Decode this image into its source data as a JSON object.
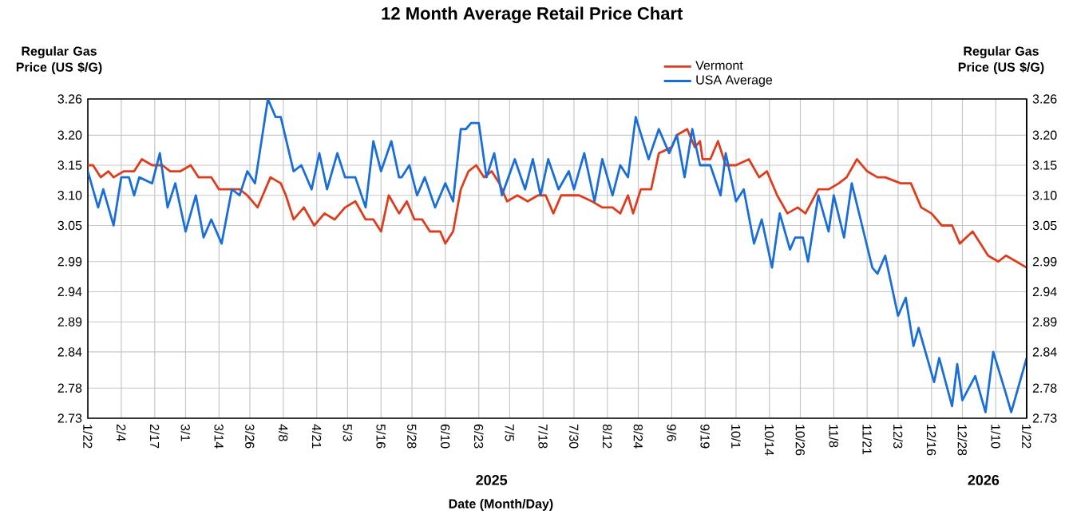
{
  "chart_data": {
    "type": "line",
    "title": "12 Month Average Retail Price Chart",
    "xlabel": "Date (Month/Day)",
    "ylabel": "Regular Gas Price (US $/G)",
    "y2label": "Regular Gas Price (US $/G)",
    "annotations": [
      "2025",
      "2026"
    ],
    "xlim": [
      "2025-01-22",
      "2026-01-22"
    ],
    "xticks": [
      {
        "value": "2025-01-22",
        "label": "1/22"
      },
      {
        "value": "2025-02-04",
        "label": "2/4"
      },
      {
        "value": "2025-02-17",
        "label": "2/17"
      },
      {
        "value": "2025-03-01",
        "label": "3/1"
      },
      {
        "value": "2025-03-14",
        "label": "3/14"
      },
      {
        "value": "2025-03-26",
        "label": "3/26"
      },
      {
        "value": "2025-04-08",
        "label": "4/8"
      },
      {
        "value": "2025-04-21",
        "label": "4/21"
      },
      {
        "value": "2025-05-03",
        "label": "5/3"
      },
      {
        "value": "2025-05-16",
        "label": "5/16"
      },
      {
        "value": "2025-05-28",
        "label": "5/28"
      },
      {
        "value": "2025-06-10",
        "label": "6/10"
      },
      {
        "value": "2025-06-23",
        "label": "6/23"
      },
      {
        "value": "2025-07-05",
        "label": "7/5"
      },
      {
        "value": "2025-07-18",
        "label": "7/18"
      },
      {
        "value": "2025-07-30",
        "label": "7/30"
      },
      {
        "value": "2025-08-12",
        "label": "8/12"
      },
      {
        "value": "2025-08-24",
        "label": "8/24"
      },
      {
        "value": "2025-09-06",
        "label": "9/6"
      },
      {
        "value": "2025-09-19",
        "label": "9/19"
      },
      {
        "value": "2025-10-01",
        "label": "10/1"
      },
      {
        "value": "2025-10-14",
        "label": "10/14"
      },
      {
        "value": "2025-10-26",
        "label": "10/26"
      },
      {
        "value": "2025-11-08",
        "label": "11/8"
      },
      {
        "value": "2025-11-21",
        "label": "11/21"
      },
      {
        "value": "2025-12-03",
        "label": "12/3"
      },
      {
        "value": "2025-12-16",
        "label": "12/16"
      },
      {
        "value": "2025-12-28",
        "label": "12/28"
      },
      {
        "value": "2026-01-10",
        "label": "1/10"
      },
      {
        "value": "2026-01-22",
        "label": "1/22"
      }
    ],
    "ylim": [
      2.73,
      3.26
    ],
    "yticks": [
      {
        "value": 2.73,
        "label": "2.73"
      },
      {
        "value": 2.78,
        "label": "2.78"
      },
      {
        "value": 2.84,
        "label": "2.84"
      },
      {
        "value": 2.89,
        "label": "2.89"
      },
      {
        "value": 2.94,
        "label": "2.94"
      },
      {
        "value": 2.99,
        "label": "2.99"
      },
      {
        "value": 3.05,
        "label": "3.05"
      },
      {
        "value": 3.1,
        "label": "3.10"
      },
      {
        "value": 3.15,
        "label": "3.15"
      },
      {
        "value": 3.2,
        "label": "3.20"
      },
      {
        "value": 3.26,
        "label": "3.26"
      }
    ],
    "y2lim": [
      2.73,
      3.26
    ],
    "y2ticks": [
      {
        "value": 2.73,
        "label": "2.73"
      },
      {
        "value": 2.78,
        "label": "2.78"
      },
      {
        "value": 2.84,
        "label": "2.84"
      },
      {
        "value": 2.89,
        "label": "2.89"
      },
      {
        "value": 2.94,
        "label": "2.94"
      },
      {
        "value": 2.99,
        "label": "2.99"
      },
      {
        "value": 3.05,
        "label": "3.05"
      },
      {
        "value": 3.1,
        "label": "3.10"
      },
      {
        "value": 3.15,
        "label": "3.15"
      },
      {
        "value": 3.2,
        "label": "3.20"
      },
      {
        "value": 3.26,
        "label": "3.26"
      }
    ],
    "grid": true,
    "legend": "top",
    "series": [
      {
        "name": "Vermont",
        "color": "#dd3d1c",
        "x": [
          "2025-01-22",
          "2025-01-24",
          "2025-01-27",
          "2025-01-30",
          "2025-02-01",
          "2025-02-05",
          "2025-02-09",
          "2025-02-12",
          "2025-02-16",
          "2025-02-20",
          "2025-02-23",
          "2025-02-27",
          "2025-03-03",
          "2025-03-06",
          "2025-03-11",
          "2025-03-14",
          "2025-03-18",
          "2025-03-22",
          "2025-03-25",
          "2025-03-29",
          "2025-03-31",
          "2025-04-03",
          "2025-04-07",
          "2025-04-09",
          "2025-04-12",
          "2025-04-16",
          "2025-04-20",
          "2025-04-24",
          "2025-04-28",
          "2025-05-02",
          "2025-05-06",
          "2025-05-10",
          "2025-05-13",
          "2025-05-16",
          "2025-05-19",
          "2025-05-23",
          "2025-05-26",
          "2025-05-29",
          "2025-06-01",
          "2025-06-04",
          "2025-06-08",
          "2025-06-10",
          "2025-06-13",
          "2025-06-16",
          "2025-06-19",
          "2025-06-22",
          "2025-06-25",
          "2025-06-28",
          "2025-07-01",
          "2025-07-04",
          "2025-07-08",
          "2025-07-12",
          "2025-07-16",
          "2025-07-19",
          "2025-07-22",
          "2025-07-25",
          "2025-07-29",
          "2025-08-01",
          "2025-08-06",
          "2025-08-10",
          "2025-08-14",
          "2025-08-17",
          "2025-08-20",
          "2025-08-22",
          "2025-08-25",
          "2025-08-29",
          "2025-09-01",
          "2025-09-06",
          "2025-09-08",
          "2025-09-12",
          "2025-09-15",
          "2025-09-17",
          "2025-09-18",
          "2025-09-21",
          "2025-09-24",
          "2025-09-27",
          "2025-10-01",
          "2025-10-06",
          "2025-10-10",
          "2025-10-13",
          "2025-10-17",
          "2025-10-21",
          "2025-10-25",
          "2025-10-28",
          "2025-11-02",
          "2025-11-06",
          "2025-11-10",
          "2025-11-13",
          "2025-11-17",
          "2025-11-21",
          "2025-11-25",
          "2025-11-28",
          "2025-12-04",
          "2025-12-08",
          "2025-12-12",
          "2025-12-16",
          "2025-12-20",
          "2025-12-24",
          "2025-12-27",
          "2026-01-01",
          "2026-01-04",
          "2026-01-07",
          "2026-01-11",
          "2026-01-14",
          "2026-01-22"
        ],
        "values": [
          3.15,
          3.15,
          3.13,
          3.14,
          3.13,
          3.14,
          3.14,
          3.16,
          3.15,
          3.15,
          3.14,
          3.14,
          3.15,
          3.13,
          3.13,
          3.11,
          3.11,
          3.11,
          3.1,
          3.08,
          3.1,
          3.13,
          3.12,
          3.1,
          3.06,
          3.08,
          3.05,
          3.07,
          3.06,
          3.08,
          3.09,
          3.06,
          3.06,
          3.04,
          3.1,
          3.07,
          3.09,
          3.06,
          3.06,
          3.04,
          3.04,
          3.02,
          3.04,
          3.11,
          3.14,
          3.15,
          3.13,
          3.14,
          3.12,
          3.09,
          3.1,
          3.09,
          3.1,
          3.1,
          3.07,
          3.1,
          3.1,
          3.1,
          3.09,
          3.08,
          3.08,
          3.07,
          3.1,
          3.07,
          3.11,
          3.11,
          3.17,
          3.18,
          3.2,
          3.21,
          3.18,
          3.19,
          3.16,
          3.16,
          3.19,
          3.15,
          3.15,
          3.16,
          3.13,
          3.14,
          3.1,
          3.07,
          3.08,
          3.07,
          3.11,
          3.11,
          3.12,
          3.13,
          3.16,
          3.14,
          3.13,
          3.13,
          3.12,
          3.12,
          3.08,
          3.07,
          3.05,
          3.05,
          3.02,
          3.04,
          3.02,
          3.0,
          2.99,
          3.0,
          2.98
        ]
      },
      {
        "name": "USA Average",
        "color": "#1a6ed8",
        "x": [
          "2025-01-22",
          "2025-01-26",
          "2025-01-28",
          "2025-02-01",
          "2025-02-04",
          "2025-02-07",
          "2025-02-09",
          "2025-02-11",
          "2025-02-16",
          "2025-02-19",
          "2025-02-22",
          "2025-02-25",
          "2025-03-01",
          "2025-03-05",
          "2025-03-08",
          "2025-03-11",
          "2025-03-15",
          "2025-03-19",
          "2025-03-22",
          "2025-03-25",
          "2025-03-28",
          "2025-04-02",
          "2025-04-05",
          "2025-04-07",
          "2025-04-12",
          "2025-04-15",
          "2025-04-19",
          "2025-04-22",
          "2025-04-25",
          "2025-04-29",
          "2025-05-02",
          "2025-05-06",
          "2025-05-10",
          "2025-05-13",
          "2025-05-16",
          "2025-05-20",
          "2025-05-23",
          "2025-05-24",
          "2025-05-27",
          "2025-05-30",
          "2025-06-02",
          "2025-06-06",
          "2025-06-10",
          "2025-06-13",
          "2025-06-16",
          "2025-06-18",
          "2025-06-20",
          "2025-06-23",
          "2025-06-26",
          "2025-06-29",
          "2025-07-02",
          "2025-07-07",
          "2025-07-11",
          "2025-07-14",
          "2025-07-17",
          "2025-07-20",
          "2025-07-24",
          "2025-07-28",
          "2025-07-30",
          "2025-08-03",
          "2025-08-07",
          "2025-08-10",
          "2025-08-14",
          "2025-08-17",
          "2025-08-20",
          "2025-08-23",
          "2025-08-28",
          "2025-09-01",
          "2025-09-05",
          "2025-09-08",
          "2025-09-11",
          "2025-09-14",
          "2025-09-17",
          "2025-09-21",
          "2025-09-25",
          "2025-09-27",
          "2025-10-01",
          "2025-10-04",
          "2025-10-08",
          "2025-10-11",
          "2025-10-15",
          "2025-10-18",
          "2025-10-22",
          "2025-10-24",
          "2025-10-27",
          "2025-10-29",
          "2025-11-02",
          "2025-11-06",
          "2025-11-08",
          "2025-11-12",
          "2025-11-15",
          "2025-11-19",
          "2025-11-23",
          "2025-11-25",
          "2025-11-28",
          "2025-12-03",
          "2025-12-06",
          "2025-12-09",
          "2025-12-11",
          "2025-12-17",
          "2025-12-19",
          "2025-12-24",
          "2025-12-26",
          "2025-12-28",
          "2026-01-02",
          "2026-01-06",
          "2026-01-09",
          "2026-01-14",
          "2026-01-16",
          "2026-01-22"
        ],
        "values": [
          3.14,
          3.08,
          3.11,
          3.05,
          3.13,
          3.13,
          3.1,
          3.13,
          3.12,
          3.17,
          3.08,
          3.12,
          3.04,
          3.1,
          3.03,
          3.06,
          3.02,
          3.11,
          3.1,
          3.14,
          3.12,
          3.26,
          3.23,
          3.23,
          3.14,
          3.15,
          3.11,
          3.17,
          3.11,
          3.17,
          3.13,
          3.13,
          3.08,
          3.19,
          3.14,
          3.19,
          3.13,
          3.13,
          3.15,
          3.1,
          3.13,
          3.08,
          3.12,
          3.09,
          3.21,
          3.21,
          3.22,
          3.22,
          3.13,
          3.17,
          3.1,
          3.16,
          3.11,
          3.16,
          3.1,
          3.16,
          3.11,
          3.14,
          3.11,
          3.17,
          3.09,
          3.16,
          3.1,
          3.15,
          3.13,
          3.23,
          3.16,
          3.21,
          3.17,
          3.2,
          3.13,
          3.21,
          3.15,
          3.15,
          3.1,
          3.17,
          3.09,
          3.11,
          3.02,
          3.06,
          2.98,
          3.07,
          3.01,
          3.03,
          3.03,
          2.99,
          3.1,
          3.04,
          3.1,
          3.03,
          3.12,
          3.05,
          2.98,
          2.97,
          3.0,
          2.9,
          2.93,
          2.85,
          2.88,
          2.79,
          2.83,
          2.75,
          2.82,
          2.76,
          2.8,
          2.74,
          2.84,
          2.77,
          2.74,
          2.83
        ]
      }
    ]
  }
}
